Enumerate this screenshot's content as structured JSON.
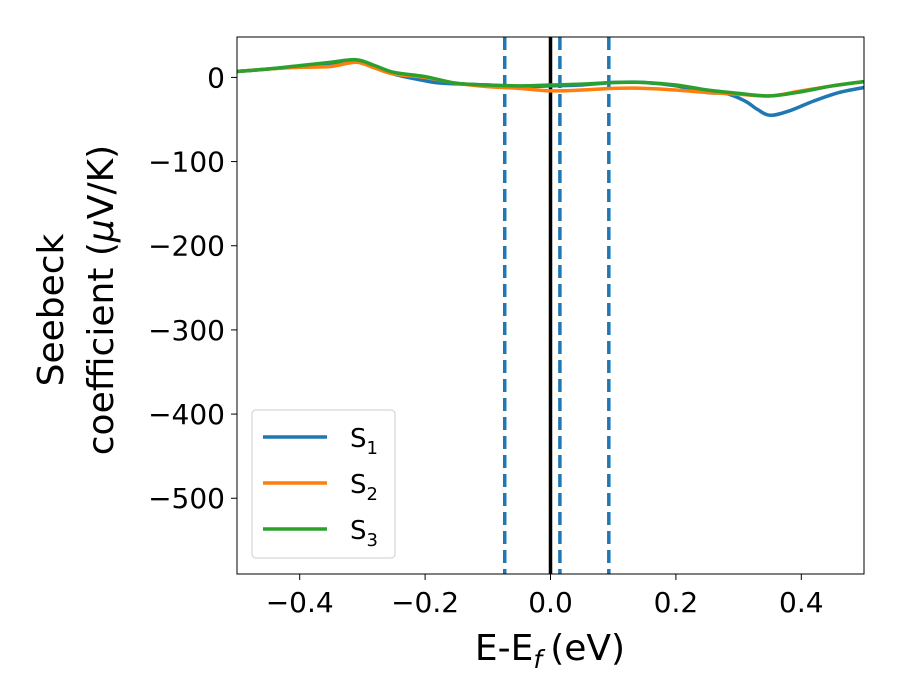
{
  "chart_data": {
    "type": "line",
    "xlabel": "E-E",
    "xlabel_sub": "f",
    "xlabel_unit": "(eV)",
    "ylabel_line1": "Seebeck",
    "ylabel_line2": "coefficient  (",
    "ylabel_mu": "μ",
    "ylabel_unit": "V/K)",
    "xlim": [
      -0.5,
      0.5
    ],
    "ylim": [
      -590,
      48
    ],
    "xticks": [
      -0.4,
      -0.2,
      0.0,
      0.2,
      0.4
    ],
    "xtick_labels": [
      "−0.4",
      "−0.2",
      "0.0",
      "0.2",
      "0.4"
    ],
    "yticks": [
      0,
      -100,
      -200,
      -300,
      -400,
      -500
    ],
    "ytick_labels": [
      "0",
      "−100",
      "−200",
      "−300",
      "−400",
      "−500"
    ],
    "grid": false,
    "legend_position": "lower-left",
    "vertical_lines": [
      {
        "x": 0.0,
        "style": "solid",
        "color": "#000000"
      },
      {
        "x": -0.073,
        "style": "dashed",
        "color": "#1f77b4"
      },
      {
        "x": 0.015,
        "style": "dashed",
        "color": "#1f77b4"
      },
      {
        "x": 0.093,
        "style": "dashed",
        "color": "#1f77b4"
      }
    ],
    "series": [
      {
        "name": "S",
        "sub": "1",
        "color": "#1f77b4",
        "x": [
          -0.5,
          -0.45,
          -0.4,
          -0.35,
          -0.31,
          -0.28,
          -0.25,
          -0.2,
          -0.17,
          -0.1,
          -0.05,
          0.0,
          0.05,
          0.1,
          0.15,
          0.2,
          0.25,
          0.28,
          0.31,
          0.33,
          0.35,
          0.38,
          0.42,
          0.46,
          0.5
        ],
        "y": [
          7,
          10,
          13,
          17,
          20,
          13,
          4,
          -4,
          -7,
          -9,
          -11,
          -10,
          -9,
          -6,
          -6,
          -10,
          -18,
          -19,
          -28,
          -38,
          -45,
          -40,
          -28,
          -18,
          -12
        ]
      },
      {
        "name": "S",
        "sub": "2",
        "color": "#ff7f0e",
        "x": [
          -0.5,
          -0.45,
          -0.4,
          -0.35,
          -0.31,
          -0.28,
          -0.25,
          -0.2,
          -0.15,
          -0.1,
          -0.05,
          0.0,
          0.05,
          0.1,
          0.15,
          0.2,
          0.25,
          0.3,
          0.35,
          0.4,
          0.45,
          0.5
        ],
        "y": [
          7,
          10,
          12,
          13,
          18,
          11,
          4,
          0,
          -7,
          -11,
          -13,
          -16,
          -15,
          -13,
          -13,
          -15,
          -18,
          -20,
          -22,
          -16,
          -10,
          -5
        ]
      },
      {
        "name": "S",
        "sub": "3",
        "color": "#2ca02c",
        "x": [
          -0.5,
          -0.45,
          -0.4,
          -0.35,
          -0.31,
          -0.28,
          -0.25,
          -0.2,
          -0.15,
          -0.1,
          -0.05,
          0.0,
          0.05,
          0.1,
          0.15,
          0.2,
          0.25,
          0.3,
          0.35,
          0.4,
          0.45,
          0.5
        ],
        "y": [
          7,
          10,
          14,
          18,
          21,
          14,
          6,
          1,
          -7,
          -9,
          -10,
          -9,
          -8,
          -6,
          -6,
          -9,
          -15,
          -19,
          -22,
          -17,
          -10,
          -5
        ]
      }
    ]
  }
}
